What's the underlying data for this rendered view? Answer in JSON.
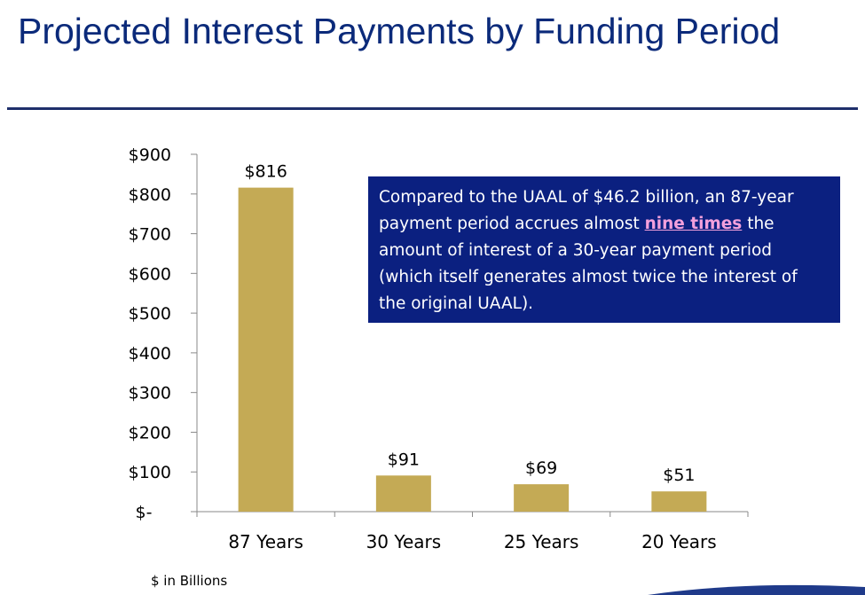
{
  "title": "Projected Interest Payments by Funding Period",
  "callout": {
    "before": "Compared to the UAAL of $46.2 billion, an 87-year payment period accrues almost ",
    "highlight": "nine times",
    "after": " the amount of interest of a 30-year payment period (which itself generates almost twice the interest of the original UAAL)."
  },
  "units_note": "$ in Billions",
  "colors": {
    "bar": "#c4aa55",
    "title": "#0b2a7a",
    "callout_bg": "#0b2080",
    "highlight": "#f3a0dc"
  },
  "chart_data": {
    "type": "bar",
    "categories": [
      "87 Years",
      "30 Years",
      "25 Years",
      "20 Years"
    ],
    "values": [
      816,
      91,
      69,
      51
    ],
    "value_labels": [
      "$816",
      "$91",
      "$69",
      "$51"
    ],
    "ylim": [
      0,
      900
    ],
    "yticks": [
      0,
      100,
      200,
      300,
      400,
      500,
      600,
      700,
      800,
      900
    ],
    "ytick_labels": [
      "$-",
      "$100",
      "$200",
      "$300",
      "$400",
      "$500",
      "$600",
      "$700",
      "$800",
      "$900"
    ],
    "grid": false,
    "legend": "none"
  }
}
